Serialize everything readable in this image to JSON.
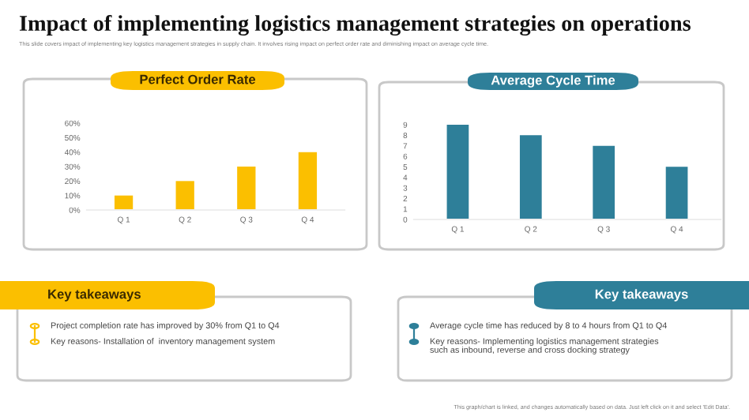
{
  "chart_data": [
    {
      "type": "other",
      "title": "Impact of implementing logistics management strategies on operations",
      "subtitle": "This slide covers impact of implementing key logistics management strategies in supply chain. It involves rising impact on perfect order rate and diminishing impact on average cycle time.",
      "annotations": [
        "This graph/chart is linked, and changes automatically based on data. Just left click on it and select 'Edit Data'."
      ]
    },
    {
      "type": "bar",
      "title": "Perfect Order Rate",
      "categories": [
        "Q 1",
        "Q 2",
        "Q 3",
        "Q 4"
      ],
      "values": [
        10,
        20,
        30,
        40
      ],
      "color": "#fbbf00",
      "ylim": [
        0,
        60
      ],
      "yticks": [
        {
          "value": 0,
          "label": "0%"
        },
        {
          "value": 10,
          "label": "10%"
        },
        {
          "value": 20,
          "label": "20%"
        },
        {
          "value": 30,
          "label": "30%"
        },
        {
          "value": 40,
          "label": "40%"
        },
        {
          "value": 50,
          "label": "50%"
        },
        {
          "value": 60,
          "label": "60%"
        }
      ],
      "grid": false
    },
    {
      "type": "bar",
      "title": "Average Cycle Time",
      "categories": [
        "Q 1",
        "Q 2",
        "Q 3",
        "Q 4"
      ],
      "values": [
        9,
        8,
        7,
        5
      ],
      "color": "#2e7f99",
      "ylim": [
        0,
        9
      ],
      "yticks": [
        0,
        1,
        2,
        3,
        4,
        5,
        6,
        7,
        8,
        9
      ],
      "grid": false
    },
    {
      "type": "other",
      "title": "Key takeaways",
      "color": "#fbbf00",
      "annotations": [
        "Project completion rate has improved by 30% from Q1 to Q4",
        "Key reasons- Installation of  inventory management system"
      ]
    },
    {
      "type": "other",
      "title": "Key takeaways",
      "color": "#2e7f99",
      "annotations": [
        "Average cycle time has reduced by 8 to 4 hours from Q1 to Q4",
        "Key reasons- Implementing logistics management strategies\nsuch as inbound, reverse and cross docking strategy"
      ]
    }
  ]
}
